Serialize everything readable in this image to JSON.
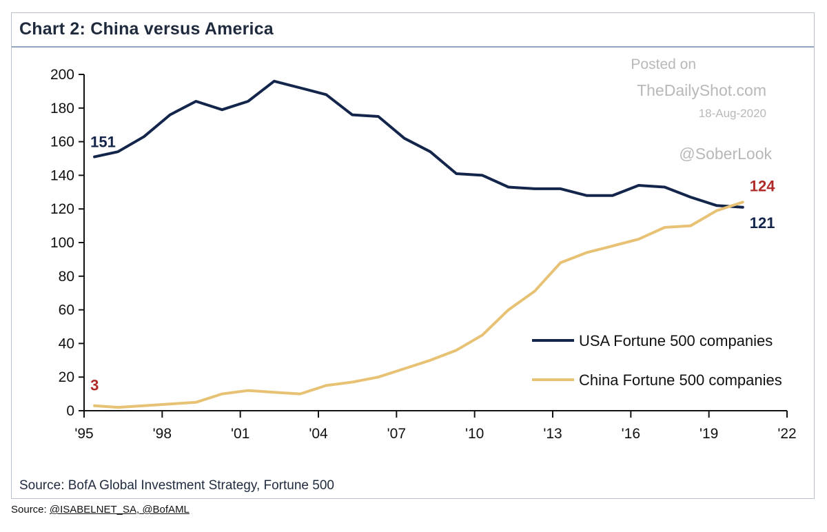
{
  "chart_data": {
    "type": "line",
    "title": "Chart 2: China versus America",
    "source": "Source: BofA Global Investment Strategy, Fortune 500",
    "xlabel": "",
    "ylabel": "",
    "x_range": [
      1995,
      2022
    ],
    "ylim": [
      0,
      200
    ],
    "y_ticks": [
      0,
      20,
      40,
      60,
      80,
      100,
      120,
      140,
      160,
      180,
      200
    ],
    "x_ticks": [
      {
        "year": 1995,
        "label": "'95"
      },
      {
        "year": 1998,
        "label": "'98"
      },
      {
        "year": 2001,
        "label": "'01"
      },
      {
        "year": 2004,
        "label": "'04"
      },
      {
        "year": 2007,
        "label": "'07"
      },
      {
        "year": 2010,
        "label": "'10"
      },
      {
        "year": 2013,
        "label": "'13"
      },
      {
        "year": 2016,
        "label": "'16"
      },
      {
        "year": 2019,
        "label": "'19"
      },
      {
        "year": 2022,
        "label": "'22"
      }
    ],
    "grid": false,
    "legend_position": "bottom-right",
    "series": [
      {
        "name": "USA Fortune 500 companies",
        "color": "#13254a",
        "x": [
          1995.4,
          1996.3,
          1997.3,
          1998.3,
          1999.3,
          2000.3,
          2001.3,
          2002.3,
          2003.3,
          2004.3,
          2005.3,
          2006.3,
          2007.3,
          2008.3,
          2009.3,
          2010.3,
          2011.3,
          2012.3,
          2013.3,
          2014.3,
          2015.3,
          2016.3,
          2017.3,
          2018.3,
          2019.3,
          2020.3
        ],
        "y": [
          151,
          154,
          163,
          176,
          184,
          179,
          184,
          196,
          192,
          188,
          176,
          175,
          162,
          154,
          141,
          140,
          133,
          132,
          132,
          128,
          128,
          134,
          133,
          127,
          122,
          121
        ]
      },
      {
        "name": "China Fortune 500 companies",
        "color": "#e8c274",
        "x": [
          1995.4,
          1996.3,
          1997.3,
          1998.3,
          1999.3,
          2000.3,
          2001.3,
          2002.3,
          2003.3,
          2004.3,
          2005.3,
          2006.3,
          2007.3,
          2008.3,
          2009.3,
          2010.3,
          2011.3,
          2012.3,
          2013.3,
          2014.3,
          2015.3,
          2016.3,
          2017.3,
          2018.3,
          2019.3,
          2020.3
        ],
        "y": [
          3,
          2,
          3,
          4,
          5,
          10,
          12,
          11,
          10,
          15,
          17,
          20,
          25,
          30,
          36,
          45,
          60,
          71,
          88,
          94,
          98,
          102,
          109,
          110,
          119,
          124
        ]
      }
    ],
    "annotations": [
      {
        "text": "151",
        "series": 0,
        "at": "start"
      },
      {
        "text": "3",
        "series": 1,
        "at": "start"
      },
      {
        "text": "124",
        "series": 1,
        "at": "end"
      },
      {
        "text": "121",
        "series": 0,
        "at": "end"
      }
    ],
    "annotation_colors": {
      "usa": "#13254a",
      "china": "#b02a2a"
    }
  },
  "watermark": {
    "line1": "Posted on",
    "line2": "TheDailyShot.com",
    "line3": "18-Aug-2020",
    "line4": "@SoberLook"
  },
  "footer": {
    "prefix": "Source: ",
    "link_text": "@ISABELNET_SA, @BofAML"
  }
}
